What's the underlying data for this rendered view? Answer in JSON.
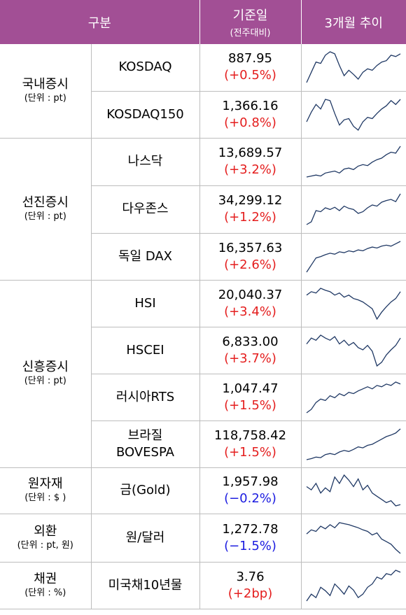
{
  "header": {
    "category": "구분",
    "base_date": "기준일",
    "base_date_sub": "(전주대비)",
    "trend": "3개월 추이"
  },
  "colors": {
    "header_bg": "#a24f95",
    "up": "#e41e1e",
    "down": "#1c1ce0",
    "sparkline": "#1f3864"
  },
  "groups": [
    {
      "name": "국내증시",
      "unit": "(단위 : pt)"
    },
    {
      "name": "선진증시",
      "unit": "(단위 : pt)"
    },
    {
      "name": "신흥증시",
      "unit": "(단위 : pt)"
    },
    {
      "name": "원자재",
      "unit": "(단위 : $ )"
    },
    {
      "name": "외환",
      "unit": "(단위 : pt, 원)"
    },
    {
      "name": "채권",
      "unit": "(단위 : %)"
    }
  ],
  "rows": [
    {
      "name": "KOSDAQ",
      "value": "887.95",
      "change": "(+0.5%)",
      "dir": "up"
    },
    {
      "name": "KOSDAQ150",
      "value": "1,366.16",
      "change": "(+0.8%)",
      "dir": "up"
    },
    {
      "name": "나스닥",
      "value": "13,689.57",
      "change": "(+3.2%)",
      "dir": "up"
    },
    {
      "name": "다우존스",
      "value": "34,299.12",
      "change": "(+1.2%)",
      "dir": "up"
    },
    {
      "name": "독일 DAX",
      "value": "16,357.63",
      "change": "(+2.6%)",
      "dir": "up"
    },
    {
      "name": "HSI",
      "value": "20,040.37",
      "change": "(+3.4%)",
      "dir": "up"
    },
    {
      "name": "HSCEI",
      "value": "6,833.00",
      "change": "(+3.7%)",
      "dir": "up"
    },
    {
      "name": "러시아RTS",
      "value": "1,047.47",
      "change": "(+1.5%)",
      "dir": "up"
    },
    {
      "name": "브라질",
      "name2": "BOVESPA",
      "value": "118,758.42",
      "change": "(+1.5%)",
      "dir": "up"
    },
    {
      "name": "금(Gold)",
      "value": "1,957.98",
      "change": "(−0.2%)",
      "dir": "down"
    },
    {
      "name": "원/달러",
      "value": "1,272.78",
      "change": "(−1.5%)",
      "dir": "down"
    },
    {
      "name": "미국채10년물",
      "value": "3.76",
      "change": "(+2bp)",
      "dir": "up"
    }
  ],
  "trends": [
    [
      30,
      45,
      60,
      58,
      70,
      75,
      72,
      55,
      40,
      48,
      42,
      35,
      45,
      50,
      48,
      55,
      60,
      62,
      70,
      68,
      72
    ],
    [
      35,
      50,
      62,
      55,
      70,
      68,
      48,
      30,
      38,
      40,
      28,
      22,
      35,
      42,
      40,
      48,
      55,
      60,
      68,
      62,
      70
    ],
    [
      10,
      12,
      14,
      12,
      18,
      20,
      22,
      18,
      26,
      28,
      25,
      32,
      35,
      33,
      40,
      45,
      48,
      55,
      60,
      58,
      72
    ],
    [
      15,
      20,
      40,
      38,
      45,
      42,
      46,
      40,
      48,
      44,
      42,
      35,
      38,
      45,
      50,
      48,
      55,
      58,
      60,
      56,
      70
    ],
    [
      5,
      20,
      35,
      38,
      42,
      45,
      43,
      48,
      46,
      50,
      48,
      52,
      50,
      55,
      58,
      56,
      60,
      62,
      60,
      65,
      70
    ],
    [
      55,
      60,
      58,
      65,
      62,
      60,
      55,
      58,
      52,
      55,
      50,
      48,
      45,
      40,
      35,
      20,
      30,
      38,
      45,
      50,
      60
    ],
    [
      50,
      58,
      55,
      62,
      58,
      55,
      60,
      50,
      55,
      48,
      52,
      45,
      42,
      48,
      40,
      20,
      25,
      35,
      42,
      48,
      58
    ],
    [
      20,
      25,
      35,
      40,
      38,
      45,
      42,
      48,
      45,
      50,
      48,
      52,
      55,
      58,
      55,
      60,
      58,
      62,
      60,
      65,
      62
    ],
    [
      10,
      12,
      15,
      14,
      20,
      22,
      20,
      25,
      28,
      26,
      30,
      35,
      33,
      38,
      40,
      45,
      50,
      55,
      58,
      62,
      70
    ],
    [
      50,
      45,
      55,
      40,
      48,
      42,
      65,
      55,
      68,
      60,
      50,
      62,
      45,
      52,
      40,
      35,
      30,
      25,
      28,
      20,
      22
    ],
    [
      50,
      58,
      55,
      65,
      60,
      68,
      62,
      72,
      70,
      68,
      65,
      62,
      58,
      55,
      48,
      52,
      40,
      35,
      30,
      20,
      12
    ],
    [
      20,
      30,
      25,
      40,
      35,
      28,
      45,
      38,
      30,
      42,
      36,
      25,
      30,
      40,
      45,
      55,
      52,
      60,
      58,
      65,
      62
    ]
  ]
}
